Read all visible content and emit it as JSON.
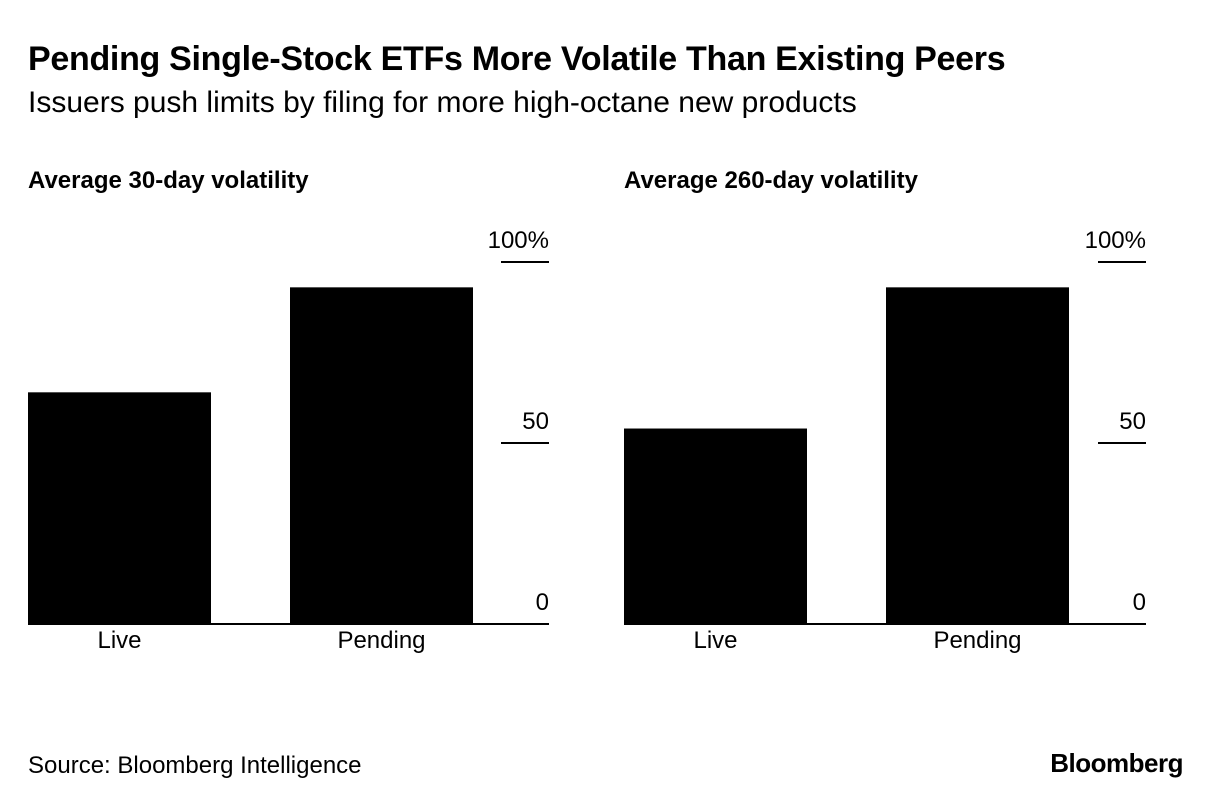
{
  "title": "Pending Single-Stock ETFs More Volatile Than Existing Peers",
  "subtitle": "Issuers push limits by filing for more high-octane new products",
  "source": "Source: Bloomberg Intelligence",
  "logo": "Bloomberg",
  "colors": {
    "bar": "#000000",
    "axis": "#000000",
    "background": "#ffffff"
  },
  "chart_data": [
    {
      "type": "bar",
      "title": "Average 30-day volatility",
      "categories": [
        "Live",
        "Pending"
      ],
      "values": [
        64,
        93
      ],
      "ylim": [
        0,
        100
      ],
      "yticks": [
        0,
        50,
        100
      ],
      "ytick_labels": [
        "0",
        "50",
        "100%"
      ],
      "grid": false
    },
    {
      "type": "bar",
      "title": "Average 260-day volatility",
      "categories": [
        "Live",
        "Pending"
      ],
      "values": [
        54,
        93
      ],
      "ylim": [
        0,
        100
      ],
      "yticks": [
        0,
        50,
        100
      ],
      "ytick_labels": [
        "0",
        "50",
        "100%"
      ],
      "grid": false
    }
  ]
}
